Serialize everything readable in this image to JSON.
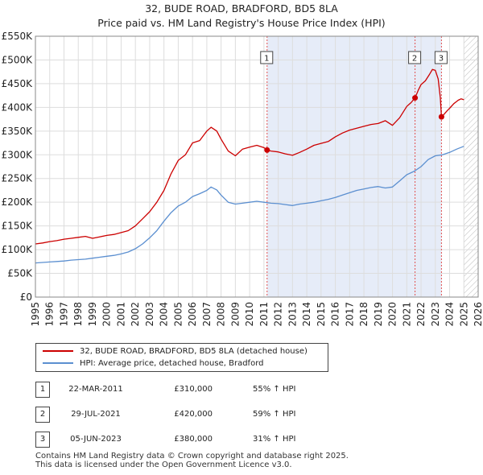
{
  "title_line1": "32, BUDE ROAD, BRADFORD, BD5 8LA",
  "title_line2": "Price paid vs. HM Land Registry's House Price Index (HPI)",
  "chart_data": {
    "type": "line",
    "title": "32, BUDE ROAD, BRADFORD, BD5 8LA — Price paid vs. HM Land Registry's House Price Index (HPI)",
    "xlim": [
      1995,
      2026
    ],
    "ylim": [
      0,
      550000
    ],
    "x_ticks": [
      "1995",
      "1996",
      "1997",
      "1998",
      "1999",
      "2000",
      "2001",
      "2002",
      "2003",
      "2004",
      "2005",
      "2006",
      "2007",
      "2008",
      "2009",
      "2010",
      "2011",
      "2012",
      "2013",
      "2014",
      "2015",
      "2016",
      "2017",
      "2018",
      "2019",
      "2020",
      "2021",
      "2022",
      "2023",
      "2024",
      "2025",
      "2026"
    ],
    "y_ticks": [
      {
        "value": 0,
        "label": "£0"
      },
      {
        "value": 50000,
        "label": "£50K"
      },
      {
        "value": 100000,
        "label": "£100K"
      },
      {
        "value": 150000,
        "label": "£150K"
      },
      {
        "value": 200000,
        "label": "£200K"
      },
      {
        "value": 250000,
        "label": "£250K"
      },
      {
        "value": 300000,
        "label": "£300K"
      },
      {
        "value": 350000,
        "label": "£350K"
      },
      {
        "value": 400000,
        "label": "£400K"
      },
      {
        "value": 450000,
        "label": "£450K"
      },
      {
        "value": 500000,
        "label": "£500K"
      },
      {
        "value": 550000,
        "label": "£550K"
      }
    ],
    "grid": true,
    "shaded_region": [
      2011.22,
      2023.43
    ],
    "future_hatch_from": 2025.0,
    "series": [
      {
        "name": "32, BUDE ROAD, BRADFORD, BD5 8LA (detached house)",
        "color": "#cc0000",
        "x": [
          1995,
          1995.5,
          1996,
          1996.5,
          1997,
          1997.5,
          1998,
          1998.5,
          1999,
          1999.5,
          2000,
          2000.5,
          2001,
          2001.5,
          2002,
          2002.5,
          2003,
          2003.5,
          2004,
          2004.5,
          2005,
          2005.5,
          2006,
          2006.5,
          2007,
          2007.3,
          2007.7,
          2008,
          2008.5,
          2009,
          2009.5,
          2010,
          2010.5,
          2011,
          2011.22,
          2011.5,
          2012,
          2012.5,
          2013,
          2013.5,
          2014,
          2014.5,
          2015,
          2015.5,
          2016,
          2016.5,
          2017,
          2017.5,
          2018,
          2018.5,
          2019,
          2019.5,
          2020,
          2020.5,
          2021,
          2021.3,
          2021.58,
          2021.8,
          2022,
          2022.3,
          2022.6,
          2022.8,
          2023,
          2023.2,
          2023.35,
          2023.43,
          2023.6,
          2023.8,
          2024,
          2024.3,
          2024.6,
          2024.8,
          2025
        ],
        "values": [
          112000,
          114000,
          117000,
          119000,
          122000,
          124000,
          126000,
          128000,
          124000,
          127000,
          130000,
          132000,
          136000,
          140000,
          150000,
          165000,
          180000,
          200000,
          225000,
          260000,
          288000,
          300000,
          325000,
          330000,
          350000,
          358000,
          350000,
          333000,
          308000,
          298000,
          312000,
          316000,
          320000,
          315000,
          310000,
          308000,
          306000,
          302000,
          299000,
          305000,
          312000,
          320000,
          324000,
          328000,
          338000,
          346000,
          352000,
          356000,
          360000,
          364000,
          366000,
          372000,
          362000,
          378000,
          402000,
          410000,
          420000,
          436000,
          448000,
          456000,
          470000,
          480000,
          478000,
          460000,
          420000,
          380000,
          385000,
          392000,
          398000,
          408000,
          415000,
          418000,
          416000
        ]
      },
      {
        "name": "HPI: Average price, detached house, Bradford",
        "color": "#5b8fd0",
        "x": [
          1995,
          1995.5,
          1996,
          1996.5,
          1997,
          1997.5,
          1998,
          1998.5,
          1999,
          1999.5,
          2000,
          2000.5,
          2001,
          2001.5,
          2002,
          2002.5,
          2003,
          2003.5,
          2004,
          2004.5,
          2005,
          2005.5,
          2006,
          2006.5,
          2007,
          2007.3,
          2007.7,
          2008,
          2008.5,
          2009,
          2009.5,
          2010,
          2010.5,
          2011,
          2011.5,
          2012,
          2012.5,
          2013,
          2013.5,
          2014,
          2014.5,
          2015,
          2015.5,
          2016,
          2016.5,
          2017,
          2017.5,
          2018,
          2018.5,
          2019,
          2019.5,
          2020,
          2020.5,
          2021,
          2021.5,
          2022,
          2022.5,
          2023,
          2023.5,
          2024,
          2024.5,
          2025
        ],
        "values": [
          72000,
          73000,
          74000,
          75000,
          76000,
          78000,
          79000,
          80000,
          82000,
          84000,
          86000,
          88000,
          91000,
          95000,
          102000,
          112000,
          125000,
          140000,
          160000,
          178000,
          192000,
          200000,
          212000,
          218000,
          225000,
          232000,
          226000,
          215000,
          200000,
          196000,
          198000,
          200000,
          202000,
          200000,
          198000,
          197000,
          195000,
          193000,
          196000,
          198000,
          200000,
          203000,
          206000,
          210000,
          215000,
          220000,
          225000,
          228000,
          231000,
          233000,
          230000,
          232000,
          245000,
          258000,
          265000,
          275000,
          290000,
          298000,
          300000,
          305000,
          312000,
          318000
        ]
      }
    ],
    "markers": [
      {
        "label": "1",
        "x": 2011.22,
        "y": 310000
      },
      {
        "label": "2",
        "x": 2021.58,
        "y": 420000
      },
      {
        "label": "3",
        "x": 2023.43,
        "y": 380000
      }
    ]
  },
  "legend": {
    "property_label": "32, BUDE ROAD, BRADFORD, BD5 8LA (detached house)",
    "hpi_label": "HPI: Average price, detached house, Bradford"
  },
  "transactions": [
    {
      "num": "1",
      "date": "22-MAR-2011",
      "price": "£310,000",
      "hpi": "55% ↑ HPI"
    },
    {
      "num": "2",
      "date": "29-JUL-2021",
      "price": "£420,000",
      "hpi": "59% ↑ HPI"
    },
    {
      "num": "3",
      "date": "05-JUN-2023",
      "price": "£380,000",
      "hpi": "31% ↑ HPI"
    }
  ],
  "footer": {
    "line1": "Contains HM Land Registry data © Crown copyright and database right 2025.",
    "line2": "This data is licensed under the Open Government Licence v3.0."
  },
  "colors": {
    "property": "#cc0000",
    "hpi": "#5b8fd0",
    "shade": "#e6ecf8",
    "grid": "#dddddd",
    "vline": "#e05050"
  }
}
